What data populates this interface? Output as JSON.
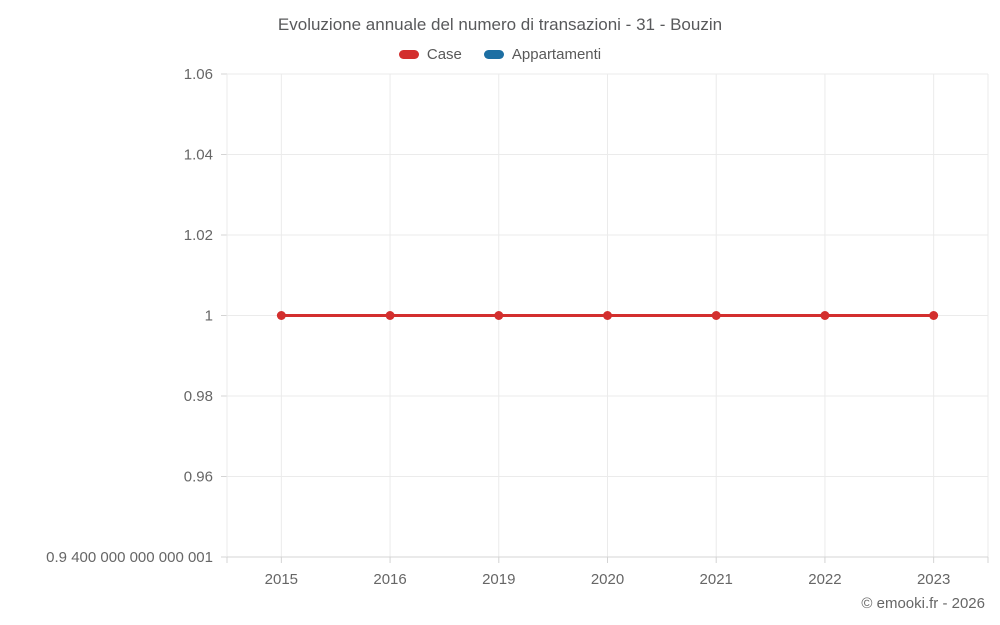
{
  "chart_data": {
    "type": "line",
    "title": "Evoluzione annuale del numero di transazioni - 31 - Bouzin",
    "categories": [
      "2015",
      "2016",
      "2019",
      "2020",
      "2021",
      "2022",
      "2023"
    ],
    "series": [
      {
        "name": "Case",
        "color": "#d32f2e",
        "values": [
          1,
          1,
          1,
          1,
          1,
          1,
          1
        ]
      },
      {
        "name": "Appartamenti",
        "color": "#1d6fa3",
        "values": []
      }
    ],
    "yaxis": {
      "min": 0.94,
      "max": 1.06,
      "ticks": [
        {
          "value": 1.06,
          "label": "1.06"
        },
        {
          "value": 1.04,
          "label": "1.04"
        },
        {
          "value": 1.02,
          "label": "1.02"
        },
        {
          "value": 1.0,
          "label": "1"
        },
        {
          "value": 0.98,
          "label": "0.98"
        },
        {
          "value": 0.96,
          "label": "0.96"
        },
        {
          "value": 0.94,
          "label": "0.9 400 000 000 000 001"
        }
      ]
    },
    "legend_position": "top",
    "grid": true,
    "colors": {
      "gridline": "#ebebeb",
      "axis": "#d4d4d4",
      "tick_label": "#666666",
      "title_text": "#58595b"
    }
  },
  "footer": {
    "text": "© emooki.fr - 2026"
  }
}
